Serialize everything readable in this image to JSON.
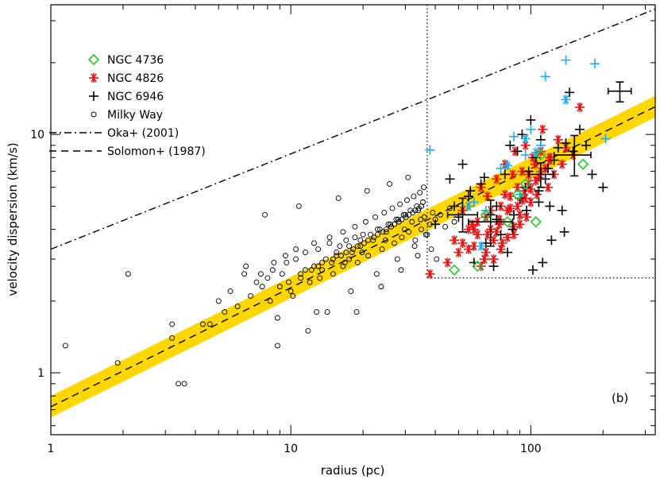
{
  "chart_data": {
    "type": "scatter",
    "title": "",
    "xlabel": "radius (pc)",
    "ylabel": "velocity dispersion (km/s)",
    "xscale": "log",
    "yscale": "log",
    "xlim": [
      1,
      330
    ],
    "ylim": [
      0.55,
      35
    ],
    "x_ticks": [
      1,
      10,
      100
    ],
    "x_tick_labels": [
      "1",
      "10",
      "100"
    ],
    "y_ticks": [
      1,
      10
    ],
    "y_tick_labels": [
      "1",
      "10"
    ],
    "panel_label": "(b)",
    "grid": false,
    "legend_position": "top-left",
    "legend": [
      {
        "label": "NGC 4736",
        "marker": "diamond",
        "color": "#22cc22"
      },
      {
        "label": "NGC 4826",
        "marker": "asterisk",
        "color": "#ee1111"
      },
      {
        "label": "NGC 6946",
        "marker": "plus",
        "color": "#000000"
      },
      {
        "label": "Milky Way",
        "marker": "circle",
        "color": "#000000"
      },
      {
        "label": "Oka+ (2001)",
        "marker": "dashdot-line",
        "color": "#000000"
      },
      {
        "label": "Solomon+ (1987)",
        "marker": "dashed-line",
        "color": "#000000"
      }
    ],
    "reference_lines": {
      "solomon": {
        "coefficient": 0.72,
        "exponent": 0.5,
        "style": "dashed"
      },
      "oka": {
        "coefficient": 3.3,
        "exponent": 0.4,
        "style": "dashdot"
      },
      "band": {
        "low_coefficient": 0.65,
        "high_coefficient": 0.8,
        "exponent": 0.5,
        "color": "#ffd700"
      },
      "completeness_radius": 37,
      "completeness_sigma": 2.5
    },
    "series": [
      {
        "name": "NGC 4826",
        "marker": "asterisk",
        "color": "#ee1111",
        "x": [
          38,
          45,
          48,
          50,
          52,
          55,
          57,
          60,
          62,
          64,
          65,
          66,
          68,
          70,
          72,
          74,
          75,
          76,
          78,
          80,
          82,
          84,
          85,
          86,
          88,
          90,
          92,
          94,
          95,
          96,
          98,
          100,
          102,
          104,
          106,
          108,
          110,
          112,
          115,
          118,
          120,
          125,
          130,
          135,
          140,
          150,
          160,
          65,
          70,
          72,
          58,
          62,
          75,
          80,
          85,
          90,
          95,
          100,
          105,
          55,
          60,
          68,
          78,
          88,
          98,
          110,
          120,
          52,
          58,
          66,
          74,
          82,
          92
        ],
        "y": [
          2.6,
          2.9,
          3.6,
          3.2,
          4.8,
          3.3,
          4.2,
          3.8,
          6.0,
          3.0,
          4.5,
          5.5,
          4.0,
          3.6,
          6.5,
          4.2,
          5.0,
          3.5,
          7.5,
          4.8,
          5.5,
          6.8,
          3.8,
          8.5,
          5.0,
          4.2,
          7.0,
          5.8,
          9.0,
          4.5,
          6.2,
          5.2,
          8.0,
          7.5,
          5.6,
          6.6,
          8.5,
          10.5,
          7.2,
          6.0,
          8.0,
          6.8,
          9.5,
          7.5,
          8.8,
          8.2,
          13.0,
          3.2,
          3.0,
          3.9,
          4.0,
          2.8,
          3.3,
          3.7,
          4.1,
          4.6,
          5.4,
          5.9,
          6.4,
          4.0,
          4.3,
          4.8,
          5.6,
          6.0,
          6.8,
          7.0,
          7.8,
          3.5,
          3.4,
          3.8,
          4.4,
          4.9,
          5.3
        ]
      },
      {
        "name": "NGC 6946",
        "marker": "plus",
        "color": "#000000",
        "x": [
          40,
          46,
          50,
          52,
          55,
          58,
          62,
          65,
          68,
          70,
          72,
          75,
          78,
          80,
          82,
          85,
          88,
          90,
          92,
          95,
          98,
          100,
          102,
          105,
          108,
          110,
          112,
          115,
          118,
          120,
          125,
          130,
          135,
          140,
          145,
          150,
          160,
          170,
          180,
          200,
          48,
          56,
          64,
          72,
          84,
          96,
          108,
          122,
          138
        ],
        "y": [
          4.2,
          6.5,
          4.5,
          7.5,
          5.5,
          2.9,
          6.2,
          3.5,
          4.6,
          2.8,
          5.0,
          3.8,
          6.8,
          3.2,
          9.0,
          4.6,
          8.5,
          5.4,
          10.0,
          6.0,
          7.0,
          11.5,
          2.7,
          8.0,
          5.8,
          9.5,
          2.9,
          6.5,
          7.2,
          5.0,
          7.8,
          8.8,
          4.8,
          9.2,
          15.0,
          8.5,
          10.5,
          9.0,
          6.8,
          6.0,
          5.0,
          5.8,
          6.6,
          4.4,
          4.0,
          4.8,
          5.2,
          3.6,
          3.9
        ]
      },
      {
        "name": "NGC 6946 (cyan)",
        "marker": "plus",
        "color": "#22aaee",
        "x": [
          38,
          58,
          65,
          75,
          85,
          90,
          95,
          100,
          110,
          115,
          140,
          185,
          205
        ],
        "y": [
          8.6,
          5.2,
          4.8,
          7.2,
          9.8,
          5.6,
          8.2,
          10.5,
          9.0,
          17.5,
          20.5,
          19.8,
          9.6
        ]
      },
      {
        "name": "NGC 4826 (cyan)",
        "marker": "asterisk",
        "color": "#22aaee",
        "x": [
          55,
          62,
          80,
          140,
          95,
          105
        ],
        "y": [
          5.0,
          3.4,
          7.4,
          14.0,
          9.6,
          8.4
        ]
      },
      {
        "name": "NGC 4736",
        "marker": "diamond",
        "color": "#22cc22",
        "x": [
          48,
          60,
          65,
          80,
          88,
          95,
          105,
          110,
          165
        ],
        "y": [
          2.7,
          2.8,
          4.6,
          4.3,
          5.6,
          6.2,
          4.3,
          8.2,
          7.5
        ]
      },
      {
        "name": "Milky Way",
        "marker": "circle",
        "color": "#000000",
        "x": [
          1.15,
          1.9,
          2.1,
          3.2,
          3.4,
          3.6,
          3.2,
          4.3,
          4.6,
          5.0,
          5.3,
          5.6,
          6.0,
          6.4,
          6.8,
          7.2,
          7.6,
          8.0,
          8.4,
          8.8,
          9.2,
          9.6,
          10.0,
          10.5,
          11.0,
          11.5,
          12.0,
          12.5,
          13.0,
          13.5,
          14.0,
          14.5,
          15.0,
          15.5,
          16.0,
          16.5,
          17.0,
          17.5,
          18.0,
          18.5,
          19.0,
          19.5,
          20.0,
          21.0,
          22.0,
          23.0,
          24.0,
          25.0,
          26.0,
          27.0,
          28.0,
          29.0,
          30.0,
          31.0,
          32.0,
          33.0,
          34.0,
          35.0,
          36.0,
          37.0,
          38.0,
          39.0,
          40.0,
          42.0,
          44.0,
          46.0,
          48.0,
          6.5,
          7.5,
          8.5,
          9.5,
          10.5,
          11.5,
          12.5,
          13.5,
          14.5,
          15.5,
          16.5,
          17.5,
          18.5,
          19.5,
          20.5,
          21.5,
          22.5,
          23.5,
          24.5,
          25.5,
          26.5,
          27.5,
          28.5,
          29.5,
          30.5,
          31.5,
          32.5,
          33.5,
          34.5,
          35.5,
          9.0,
          11.0,
          13.0,
          15.0,
          17.0,
          19.0,
          21.0,
          23.0,
          25.0,
          27.0,
          29.0,
          31.0,
          33.0,
          35.0,
          8.2,
          9.8,
          12.2,
          14.8,
          16.2,
          18.2,
          20.2,
          22.2,
          24.2,
          26.2,
          28.2,
          30.2,
          32.2,
          34.2,
          10.2,
          13.2,
          16.8,
          19.8,
          24.8,
          29.8,
          34.8,
          12.8,
          17.8,
          22.8,
          27.8,
          32.8,
          36.5,
          38.5,
          40.5,
          8.8,
          11.8,
          14.2,
          18.8,
          23.8,
          28.8,
          33.8,
          7.8,
          10.8,
          15.8,
          20.8,
          25.8,
          30.8,
          35.8
        ],
        "y": [
          1.3,
          1.1,
          2.6,
          1.4,
          0.9,
          0.9,
          1.6,
          1.6,
          1.6,
          2.0,
          1.8,
          2.2,
          1.9,
          2.6,
          2.1,
          2.4,
          2.3,
          2.5,
          2.7,
          1.7,
          2.6,
          2.9,
          2.2,
          3.0,
          2.5,
          3.2,
          2.4,
          2.8,
          3.3,
          2.7,
          3.0,
          3.5,
          2.6,
          3.1,
          3.4,
          2.8,
          3.6,
          3.0,
          3.2,
          3.7,
          2.9,
          3.4,
          3.8,
          3.1,
          3.6,
          4.0,
          3.3,
          3.9,
          4.2,
          3.5,
          4.4,
          3.7,
          4.6,
          3.9,
          4.3,
          3.6,
          4.8,
          4.0,
          4.5,
          3.8,
          4.2,
          4.7,
          4.4,
          4.6,
          4.1,
          4.9,
          4.3,
          2.8,
          2.6,
          2.9,
          3.1,
          3.3,
          2.7,
          3.5,
          2.9,
          3.7,
          3.2,
          3.9,
          3.4,
          4.1,
          3.6,
          4.3,
          3.8,
          4.5,
          4.0,
          4.7,
          4.2,
          4.9,
          4.4,
          5.1,
          4.6,
          5.3,
          4.8,
          5.5,
          5.0,
          5.7,
          5.2,
          2.3,
          2.6,
          2.8,
          3.0,
          3.2,
          3.4,
          3.6,
          3.8,
          4.0,
          4.2,
          4.4,
          4.6,
          4.8,
          5.0,
          2.0,
          2.4,
          2.7,
          2.9,
          3.1,
          3.3,
          3.5,
          3.7,
          3.9,
          4.1,
          4.3,
          4.5,
          4.7,
          4.9,
          2.1,
          2.5,
          2.9,
          3.2,
          3.6,
          4.0,
          4.4,
          1.8,
          2.2,
          2.6,
          3.0,
          3.4,
          3.8,
          3.3,
          3.0,
          1.3,
          1.5,
          1.8,
          1.8,
          2.3,
          2.7,
          3.1,
          4.6,
          5.0,
          5.4,
          5.8,
          6.2,
          6.6,
          6.0
        ]
      }
    ],
    "error_bars": [
      {
        "x": 52,
        "y": 4.6,
        "xlo": 45,
        "xhi": 60,
        "ylo": 3.9,
        "yhi": 5.4
      },
      {
        "x": 68,
        "y": 4.3,
        "xlo": 55,
        "xhi": 84,
        "ylo": 3.4,
        "yhi": 5.3
      },
      {
        "x": 152,
        "y": 8.2,
        "xlo": 125,
        "xhi": 178,
        "ylo": 6.7,
        "yhi": 9.9
      },
      {
        "x": 235,
        "y": 15.2,
        "xlo": 210,
        "xhi": 262,
        "ylo": 13.7,
        "yhi": 16.6
      },
      {
        "x": 110,
        "y": 6.8,
        "xlo": 98,
        "xhi": 124,
        "ylo": 6.0,
        "yhi": 7.6
      }
    ]
  }
}
